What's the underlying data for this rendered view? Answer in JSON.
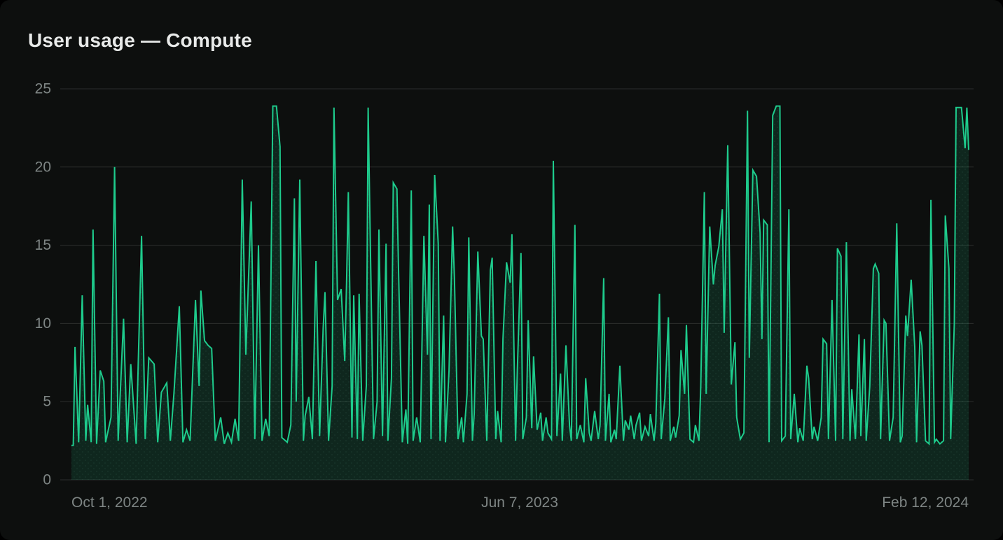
{
  "header": {
    "title": "User usage — Compute"
  },
  "colors": {
    "background": "#0d0f0e",
    "title_text": "#e8eae9",
    "axis_text": "#7e8584",
    "gridline": "rgba(255,255,255,0.13)",
    "line": "#1ecb8c",
    "area_fill": "rgba(30,203,140,0.13)",
    "area_dot": "rgba(160,255,215,0.07)"
  },
  "chart_data": {
    "type": "area",
    "title": "User usage — Compute",
    "series_name": "Compute",
    "grid": true,
    "legend": false,
    "y_axis": {
      "min": 0,
      "max": 25,
      "tick_values": [
        25,
        20,
        15,
        10,
        5,
        0
      ],
      "tick_labels": [
        "25",
        "20",
        "15",
        "10",
        "5",
        "0"
      ]
    },
    "x_axis": {
      "type": "time",
      "span_days": 499,
      "tick_labels": [
        "Oct 1, 2022",
        "Jun 7, 2023",
        "Feb 12, 2024"
      ],
      "tick_days": [
        0,
        249,
        499
      ]
    },
    "series": [
      {
        "name": "Compute",
        "points": [
          [
            0,
            2.2
          ],
          [
            1,
            2.2
          ],
          [
            2,
            8.5
          ],
          [
            4,
            2.4
          ],
          [
            6,
            11.8
          ],
          [
            8,
            2.5
          ],
          [
            9,
            4.8
          ],
          [
            11,
            2.4
          ],
          [
            12,
            16.0
          ],
          [
            14,
            2.3
          ],
          [
            16,
            7.0
          ],
          [
            18,
            6.3
          ],
          [
            19,
            2.4
          ],
          [
            22,
            4.0
          ],
          [
            24,
            20.0
          ],
          [
            26,
            2.5
          ],
          [
            29,
            10.3
          ],
          [
            31,
            2.4
          ],
          [
            33,
            7.4
          ],
          [
            36,
            2.3
          ],
          [
            39,
            15.6
          ],
          [
            41,
            2.6
          ],
          [
            43,
            7.8
          ],
          [
            46,
            7.4
          ],
          [
            48,
            2.4
          ],
          [
            50,
            5.6
          ],
          [
            53,
            6.2
          ],
          [
            55,
            2.5
          ],
          [
            57,
            5.5
          ],
          [
            60,
            11.1
          ],
          [
            62,
            2.4
          ],
          [
            64,
            3.2
          ],
          [
            66,
            2.5
          ],
          [
            69,
            11.5
          ],
          [
            71,
            6.0
          ],
          [
            72,
            12.1
          ],
          [
            74,
            8.9
          ],
          [
            76,
            8.6
          ],
          [
            78,
            8.4
          ],
          [
            80,
            2.5
          ],
          [
            83,
            4.0
          ],
          [
            85,
            2.3
          ],
          [
            87,
            3.0
          ],
          [
            89,
            2.4
          ],
          [
            91,
            3.9
          ],
          [
            93,
            2.5
          ],
          [
            95,
            19.2
          ],
          [
            97,
            8.0
          ],
          [
            100,
            17.8
          ],
          [
            102,
            2.6
          ],
          [
            104,
            15.0
          ],
          [
            106,
            2.5
          ],
          [
            108,
            3.9
          ],
          [
            110,
            2.8
          ],
          [
            112,
            23.9
          ],
          [
            114,
            23.9
          ],
          [
            116,
            21.3
          ],
          [
            117,
            2.7
          ],
          [
            120,
            2.4
          ],
          [
            122,
            3.5
          ],
          [
            124,
            18.0
          ],
          [
            125,
            5.0
          ],
          [
            127,
            19.2
          ],
          [
            129,
            2.5
          ],
          [
            130,
            4.1
          ],
          [
            132,
            5.3
          ],
          [
            134,
            2.6
          ],
          [
            136,
            14.0
          ],
          [
            138,
            2.8
          ],
          [
            140,
            9.7
          ],
          [
            141,
            12.0
          ],
          [
            143,
            2.5
          ],
          [
            145,
            6.0
          ],
          [
            146,
            23.8
          ],
          [
            148,
            11.5
          ],
          [
            150,
            12.2
          ],
          [
            152,
            7.6
          ],
          [
            153,
            12.6
          ],
          [
            154,
            18.4
          ],
          [
            156,
            2.7
          ],
          [
            157,
            11.8
          ],
          [
            159,
            2.6
          ],
          [
            160,
            11.9
          ],
          [
            162,
            2.5
          ],
          [
            164,
            6.0
          ],
          [
            165,
            23.8
          ],
          [
            166,
            16.8
          ],
          [
            168,
            2.6
          ],
          [
            170,
            5.0
          ],
          [
            171,
            16.0
          ],
          [
            173,
            2.8
          ],
          [
            175,
            15.1
          ],
          [
            176,
            2.5
          ],
          [
            178,
            6.5
          ],
          [
            179,
            19.0
          ],
          [
            181,
            18.6
          ],
          [
            182,
            13.0
          ],
          [
            184,
            2.4
          ],
          [
            186,
            4.5
          ],
          [
            187,
            2.3
          ],
          [
            189,
            18.5
          ],
          [
            190,
            2.5
          ],
          [
            192,
            4.0
          ],
          [
            194,
            2.4
          ],
          [
            196,
            15.6
          ],
          [
            198,
            8.0
          ],
          [
            199,
            17.6
          ],
          [
            200,
            2.6
          ],
          [
            202,
            19.5
          ],
          [
            204,
            15.1
          ],
          [
            205,
            2.5
          ],
          [
            207,
            10.5
          ],
          [
            208,
            2.4
          ],
          [
            210,
            7.0
          ],
          [
            212,
            16.2
          ],
          [
            213,
            12.9
          ],
          [
            215,
            2.6
          ],
          [
            217,
            4.0
          ],
          [
            218,
            2.4
          ],
          [
            220,
            5.5
          ],
          [
            221,
            15.5
          ],
          [
            223,
            2.5
          ],
          [
            224,
            4.2
          ],
          [
            226,
            14.6
          ],
          [
            228,
            9.2
          ],
          [
            229,
            9.0
          ],
          [
            231,
            2.5
          ],
          [
            233,
            13.4
          ],
          [
            234,
            14.2
          ],
          [
            236,
            2.6
          ],
          [
            237,
            4.4
          ],
          [
            239,
            2.4
          ],
          [
            240,
            9.0
          ],
          [
            242,
            13.9
          ],
          [
            244,
            12.6
          ],
          [
            245,
            15.7
          ],
          [
            247,
            2.5
          ],
          [
            248,
            7.0
          ],
          [
            250,
            14.5
          ],
          [
            251,
            2.6
          ],
          [
            253,
            4.0
          ],
          [
            254,
            10.2
          ],
          [
            256,
            3.3
          ],
          [
            257,
            7.9
          ],
          [
            259,
            3.2
          ],
          [
            261,
            4.3
          ],
          [
            262,
            2.5
          ],
          [
            264,
            4.0
          ],
          [
            265,
            3.0
          ],
          [
            267,
            2.6
          ],
          [
            268,
            20.4
          ],
          [
            270,
            2.8
          ],
          [
            272,
            6.8
          ],
          [
            273,
            2.5
          ],
          [
            275,
            8.6
          ],
          [
            277,
            3.5
          ],
          [
            278,
            2.5
          ],
          [
            280,
            16.3
          ],
          [
            281,
            2.6
          ],
          [
            283,
            3.5
          ],
          [
            285,
            2.4
          ],
          [
            286,
            6.5
          ],
          [
            288,
            3.0
          ],
          [
            289,
            2.5
          ],
          [
            291,
            4.4
          ],
          [
            293,
            2.6
          ],
          [
            294,
            3.5
          ],
          [
            296,
            12.9
          ],
          [
            297,
            2.5
          ],
          [
            299,
            5.5
          ],
          [
            300,
            2.4
          ],
          [
            302,
            3.2
          ],
          [
            303,
            2.6
          ],
          [
            305,
            7.3
          ],
          [
            307,
            2.5
          ],
          [
            308,
            3.8
          ],
          [
            310,
            3.2
          ],
          [
            311,
            4.1
          ],
          [
            313,
            2.6
          ],
          [
            314,
            3.5
          ],
          [
            316,
            4.3
          ],
          [
            317,
            2.5
          ],
          [
            319,
            3.4
          ],
          [
            321,
            2.8
          ],
          [
            322,
            4.2
          ],
          [
            324,
            2.5
          ],
          [
            325,
            3.6
          ],
          [
            327,
            11.9
          ],
          [
            328,
            2.6
          ],
          [
            330,
            5.2
          ],
          [
            332,
            10.4
          ],
          [
            333,
            2.5
          ],
          [
            335,
            3.4
          ],
          [
            336,
            2.7
          ],
          [
            338,
            4.1
          ],
          [
            339,
            8.3
          ],
          [
            341,
            5.5
          ],
          [
            342,
            9.9
          ],
          [
            344,
            2.6
          ],
          [
            346,
            2.4
          ],
          [
            347,
            3.5
          ],
          [
            349,
            2.5
          ],
          [
            350,
            6.0
          ],
          [
            352,
            18.4
          ],
          [
            353,
            5.5
          ],
          [
            355,
            16.2
          ],
          [
            357,
            12.5
          ],
          [
            358,
            13.7
          ],
          [
            360,
            14.9
          ],
          [
            362,
            17.3
          ],
          [
            363,
            9.4
          ],
          [
            365,
            21.4
          ],
          [
            367,
            6.1
          ],
          [
            369,
            8.8
          ],
          [
            370,
            4.0
          ],
          [
            372,
            2.6
          ],
          [
            374,
            3.0
          ],
          [
            376,
            23.6
          ],
          [
            377,
            7.8
          ],
          [
            379,
            19.8
          ],
          [
            381,
            19.4
          ],
          [
            383,
            15.8
          ],
          [
            384,
            9.0
          ],
          [
            385,
            16.6
          ],
          [
            387,
            16.3
          ],
          [
            388,
            2.4
          ],
          [
            390,
            23.3
          ],
          [
            392,
            23.9
          ],
          [
            394,
            23.9
          ],
          [
            395,
            2.5
          ],
          [
            397,
            2.8
          ],
          [
            399,
            17.3
          ],
          [
            400,
            2.6
          ],
          [
            402,
            5.5
          ],
          [
            404,
            2.4
          ],
          [
            405,
            3.3
          ],
          [
            407,
            2.5
          ],
          [
            409,
            7.3
          ],
          [
            410,
            6.5
          ],
          [
            412,
            2.6
          ],
          [
            413,
            3.4
          ],
          [
            415,
            2.5
          ],
          [
            417,
            4.0
          ],
          [
            418,
            9.0
          ],
          [
            420,
            8.7
          ],
          [
            421,
            2.6
          ],
          [
            423,
            11.5
          ],
          [
            425,
            2.5
          ],
          [
            426,
            14.8
          ],
          [
            428,
            14.3
          ],
          [
            429,
            2.6
          ],
          [
            431,
            15.2
          ],
          [
            433,
            2.5
          ],
          [
            434,
            5.8
          ],
          [
            436,
            2.6
          ],
          [
            438,
            9.3
          ],
          [
            439,
            2.8
          ],
          [
            441,
            9.0
          ],
          [
            442,
            2.5
          ],
          [
            444,
            6.0
          ],
          [
            446,
            13.5
          ],
          [
            447,
            13.8
          ],
          [
            449,
            13.2
          ],
          [
            450,
            2.6
          ],
          [
            452,
            10.2
          ],
          [
            453,
            10.0
          ],
          [
            455,
            2.5
          ],
          [
            457,
            4.0
          ],
          [
            459,
            16.4
          ],
          [
            461,
            2.4
          ],
          [
            462,
            2.8
          ],
          [
            464,
            10.5
          ],
          [
            465,
            9.2
          ],
          [
            467,
            12.8
          ],
          [
            469,
            8.5
          ],
          [
            470,
            2.4
          ],
          [
            472,
            9.5
          ],
          [
            473,
            8.6
          ],
          [
            475,
            2.5
          ],
          [
            477,
            2.3
          ],
          [
            478,
            17.9
          ],
          [
            480,
            2.4
          ],
          [
            481,
            2.6
          ],
          [
            483,
            2.3
          ],
          [
            485,
            2.5
          ],
          [
            486,
            16.9
          ],
          [
            488,
            13.5
          ],
          [
            489,
            2.6
          ],
          [
            491,
            10.0
          ],
          [
            492,
            23.8
          ],
          [
            494,
            23.8
          ],
          [
            495,
            23.8
          ],
          [
            497,
            21.2
          ],
          [
            498,
            23.8
          ],
          [
            499,
            21.1
          ]
        ]
      }
    ]
  }
}
